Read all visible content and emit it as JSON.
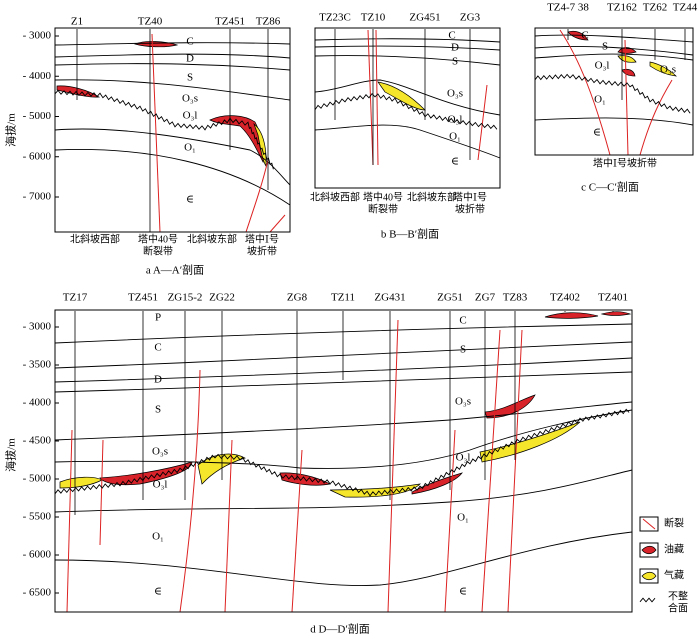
{
  "panels": [
    {
      "y_axis": {
        "title": "海拔/m",
        "yticks": [
          {
            "value": -3000,
            "label": "- 3000"
          },
          {
            "value": -4000,
            "label": "- 4000"
          },
          {
            "value": -5000,
            "label": "- 5000"
          },
          {
            "value": -6000,
            "label": "- 6000"
          },
          {
            "value": -7000,
            "label": "- 7000"
          }
        ]
      },
      "wells": [
        "Z1",
        "TZ40",
        "TZ451",
        "TZ86"
      ],
      "layers": [
        "C",
        "D",
        "S",
        "O₃s",
        "O₃l",
        "O₁",
        "∈"
      ],
      "zone_labels": [
        [
          "北斜坡西部"
        ],
        [
          "塔中40号",
          "断裂带"
        ],
        [
          "北斜坡东部"
        ],
        [
          "塔中Ⅰ号",
          "坡折带"
        ]
      ],
      "caption": "a A—A′剖面"
    },
    {
      "wells": [
        "TZ23C",
        "TZ10",
        "ZG451",
        "ZG3"
      ],
      "layers": [
        "C",
        "D",
        "S",
        "O₃s",
        "O₃l",
        "O₁",
        "∈"
      ],
      "zone_labels": [
        [
          "北斜坡西部"
        ],
        [
          "塔中40号",
          "断裂带"
        ],
        [
          "北斜坡东部"
        ],
        [
          "塔中Ⅰ号",
          "坡折带"
        ]
      ],
      "caption": "b B—B′剖面"
    },
    {
      "wells": [
        "TZ4-7 38",
        "TZ162",
        "TZ62",
        "TZ44"
      ],
      "layers": [
        "C",
        "S",
        "O₃l",
        "O₃s",
        "O₁",
        "∈"
      ],
      "zone_labels": [
        [
          "塔中Ⅰ号坡折带"
        ]
      ],
      "caption": "c C—C′剖面"
    },
    {
      "y_axis": {
        "title": "海拔/m",
        "yticks": [
          {
            "value": -3000,
            "label": "- 3000"
          },
          {
            "value": -3500,
            "label": "- 3500"
          },
          {
            "value": -4000,
            "label": "- 4000"
          },
          {
            "value": -4500,
            "label": "- 4500"
          },
          {
            "value": -5000,
            "label": "- 5000"
          },
          {
            "value": -5500,
            "label": "- 5500"
          },
          {
            "value": -6000,
            "label": "- 6000"
          },
          {
            "value": -6500,
            "label": "- 6500"
          }
        ]
      },
      "wells": [
        "TZ17",
        "TZ451",
        "ZG15-2",
        "ZG22",
        "ZG8",
        "TZ11",
        "ZG431",
        "ZG51",
        "ZG7",
        "TZ83",
        "TZ402",
        "TZ401"
      ],
      "layers": [
        "P",
        "C",
        "D",
        "S",
        "O₃s",
        "O₃l",
        "O₁",
        "∈",
        "C",
        "S",
        "O₃s",
        "O₃l",
        "O₁",
        "∈"
      ],
      "zone_labels": [],
      "caption": "d D—D′剖面"
    }
  ],
  "legend": [
    {
      "lines": [
        "断裂"
      ]
    },
    {
      "lines": [
        "油藏"
      ]
    },
    {
      "lines": [
        "气藏"
      ]
    },
    {
      "lines": [
        "不整",
        "合面"
      ]
    }
  ]
}
